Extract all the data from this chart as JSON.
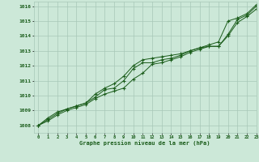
{
  "xlabel": "Graphe pression niveau de la mer (hPa)",
  "xlim": [
    -0.5,
    23
  ],
  "ylim": [
    1007.5,
    1016.3
  ],
  "yticks": [
    1008,
    1009,
    1010,
    1011,
    1012,
    1013,
    1014,
    1015,
    1016
  ],
  "xticks": [
    0,
    1,
    2,
    3,
    4,
    5,
    6,
    7,
    8,
    9,
    10,
    11,
    12,
    13,
    14,
    15,
    16,
    17,
    18,
    19,
    20,
    21,
    22,
    23
  ],
  "background_color": "#cce8d8",
  "grid_color": "#a8c8b8",
  "line_color": "#1a5c1a",
  "series1": {
    "x": [
      0,
      1,
      2,
      3,
      4,
      5,
      6,
      7,
      8,
      9,
      10,
      11,
      12,
      13,
      14,
      15,
      16,
      17,
      18,
      19,
      20,
      21,
      22,
      23
    ],
    "y": [
      1008.0,
      1008.3,
      1008.7,
      1009.0,
      1009.2,
      1009.4,
      1009.8,
      1010.1,
      1010.3,
      1010.5,
      1011.1,
      1011.5,
      1012.1,
      1012.2,
      1012.4,
      1012.6,
      1012.9,
      1013.1,
      1013.3,
      1013.3,
      1014.0,
      1014.9,
      1015.3,
      1015.8
    ]
  },
  "series2": {
    "x": [
      0,
      1,
      2,
      3,
      4,
      5,
      6,
      7,
      8,
      9,
      10,
      11,
      12,
      13,
      14,
      15,
      16,
      17,
      18,
      19,
      20,
      21,
      22,
      23
    ],
    "y": [
      1008.0,
      1008.4,
      1008.8,
      1009.1,
      1009.3,
      1009.5,
      1009.9,
      1010.4,
      1010.5,
      1011.0,
      1011.8,
      1012.2,
      1012.2,
      1012.4,
      1012.5,
      1012.7,
      1013.0,
      1013.2,
      1013.3,
      1013.3,
      1014.1,
      1015.1,
      1015.4,
      1016.0
    ]
  },
  "series3": {
    "x": [
      0,
      1,
      2,
      3,
      4,
      5,
      6,
      7,
      8,
      9,
      10,
      11,
      12,
      13,
      14,
      15,
      16,
      17,
      18,
      19,
      20,
      21,
      22,
      23
    ],
    "y": [
      1008.0,
      1008.5,
      1008.9,
      1009.1,
      1009.3,
      1009.5,
      1010.1,
      1010.5,
      1010.8,
      1011.3,
      1012.0,
      1012.4,
      1012.5,
      1012.6,
      1012.7,
      1012.8,
      1013.0,
      1013.2,
      1013.4,
      1013.6,
      1015.0,
      1015.2,
      1015.5,
      1016.1
    ]
  }
}
